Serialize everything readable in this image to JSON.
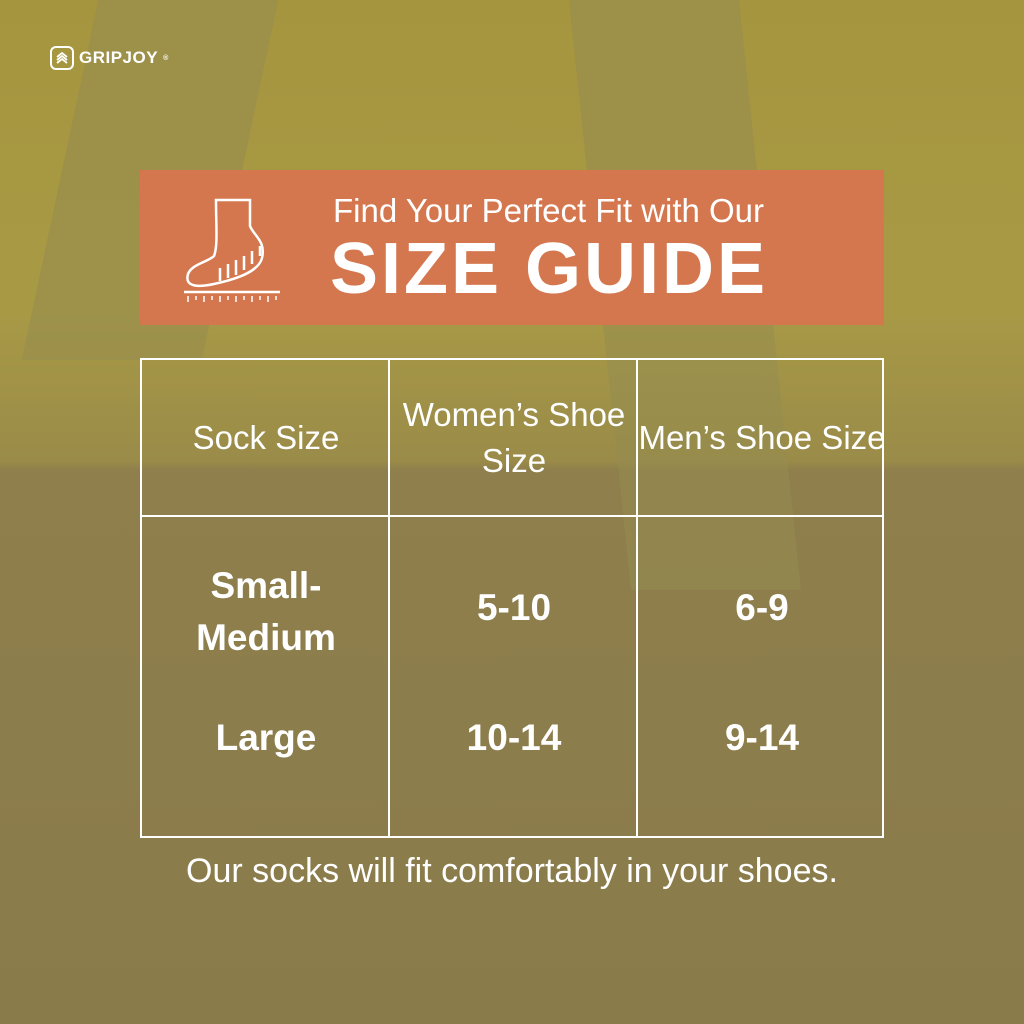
{
  "brand": {
    "name": "GRIPJOY",
    "mark": "®"
  },
  "banner": {
    "subtitle": "Find Your Perfect Fit with Our",
    "title": "SIZE GUIDE",
    "icon": "foot-ruler-icon",
    "color": "#d4774f"
  },
  "table": {
    "headers": [
      "Sock Size",
      "Women’s Shoe Size",
      "Men’s Shoe Size"
    ],
    "rows": [
      {
        "sock": "Small-Medium",
        "women": "5-10",
        "men": "6-9"
      },
      {
        "sock": "Large",
        "women": "10-14",
        "men": "9-14"
      }
    ]
  },
  "footer": "Our socks will fit comfortably in your shoes."
}
